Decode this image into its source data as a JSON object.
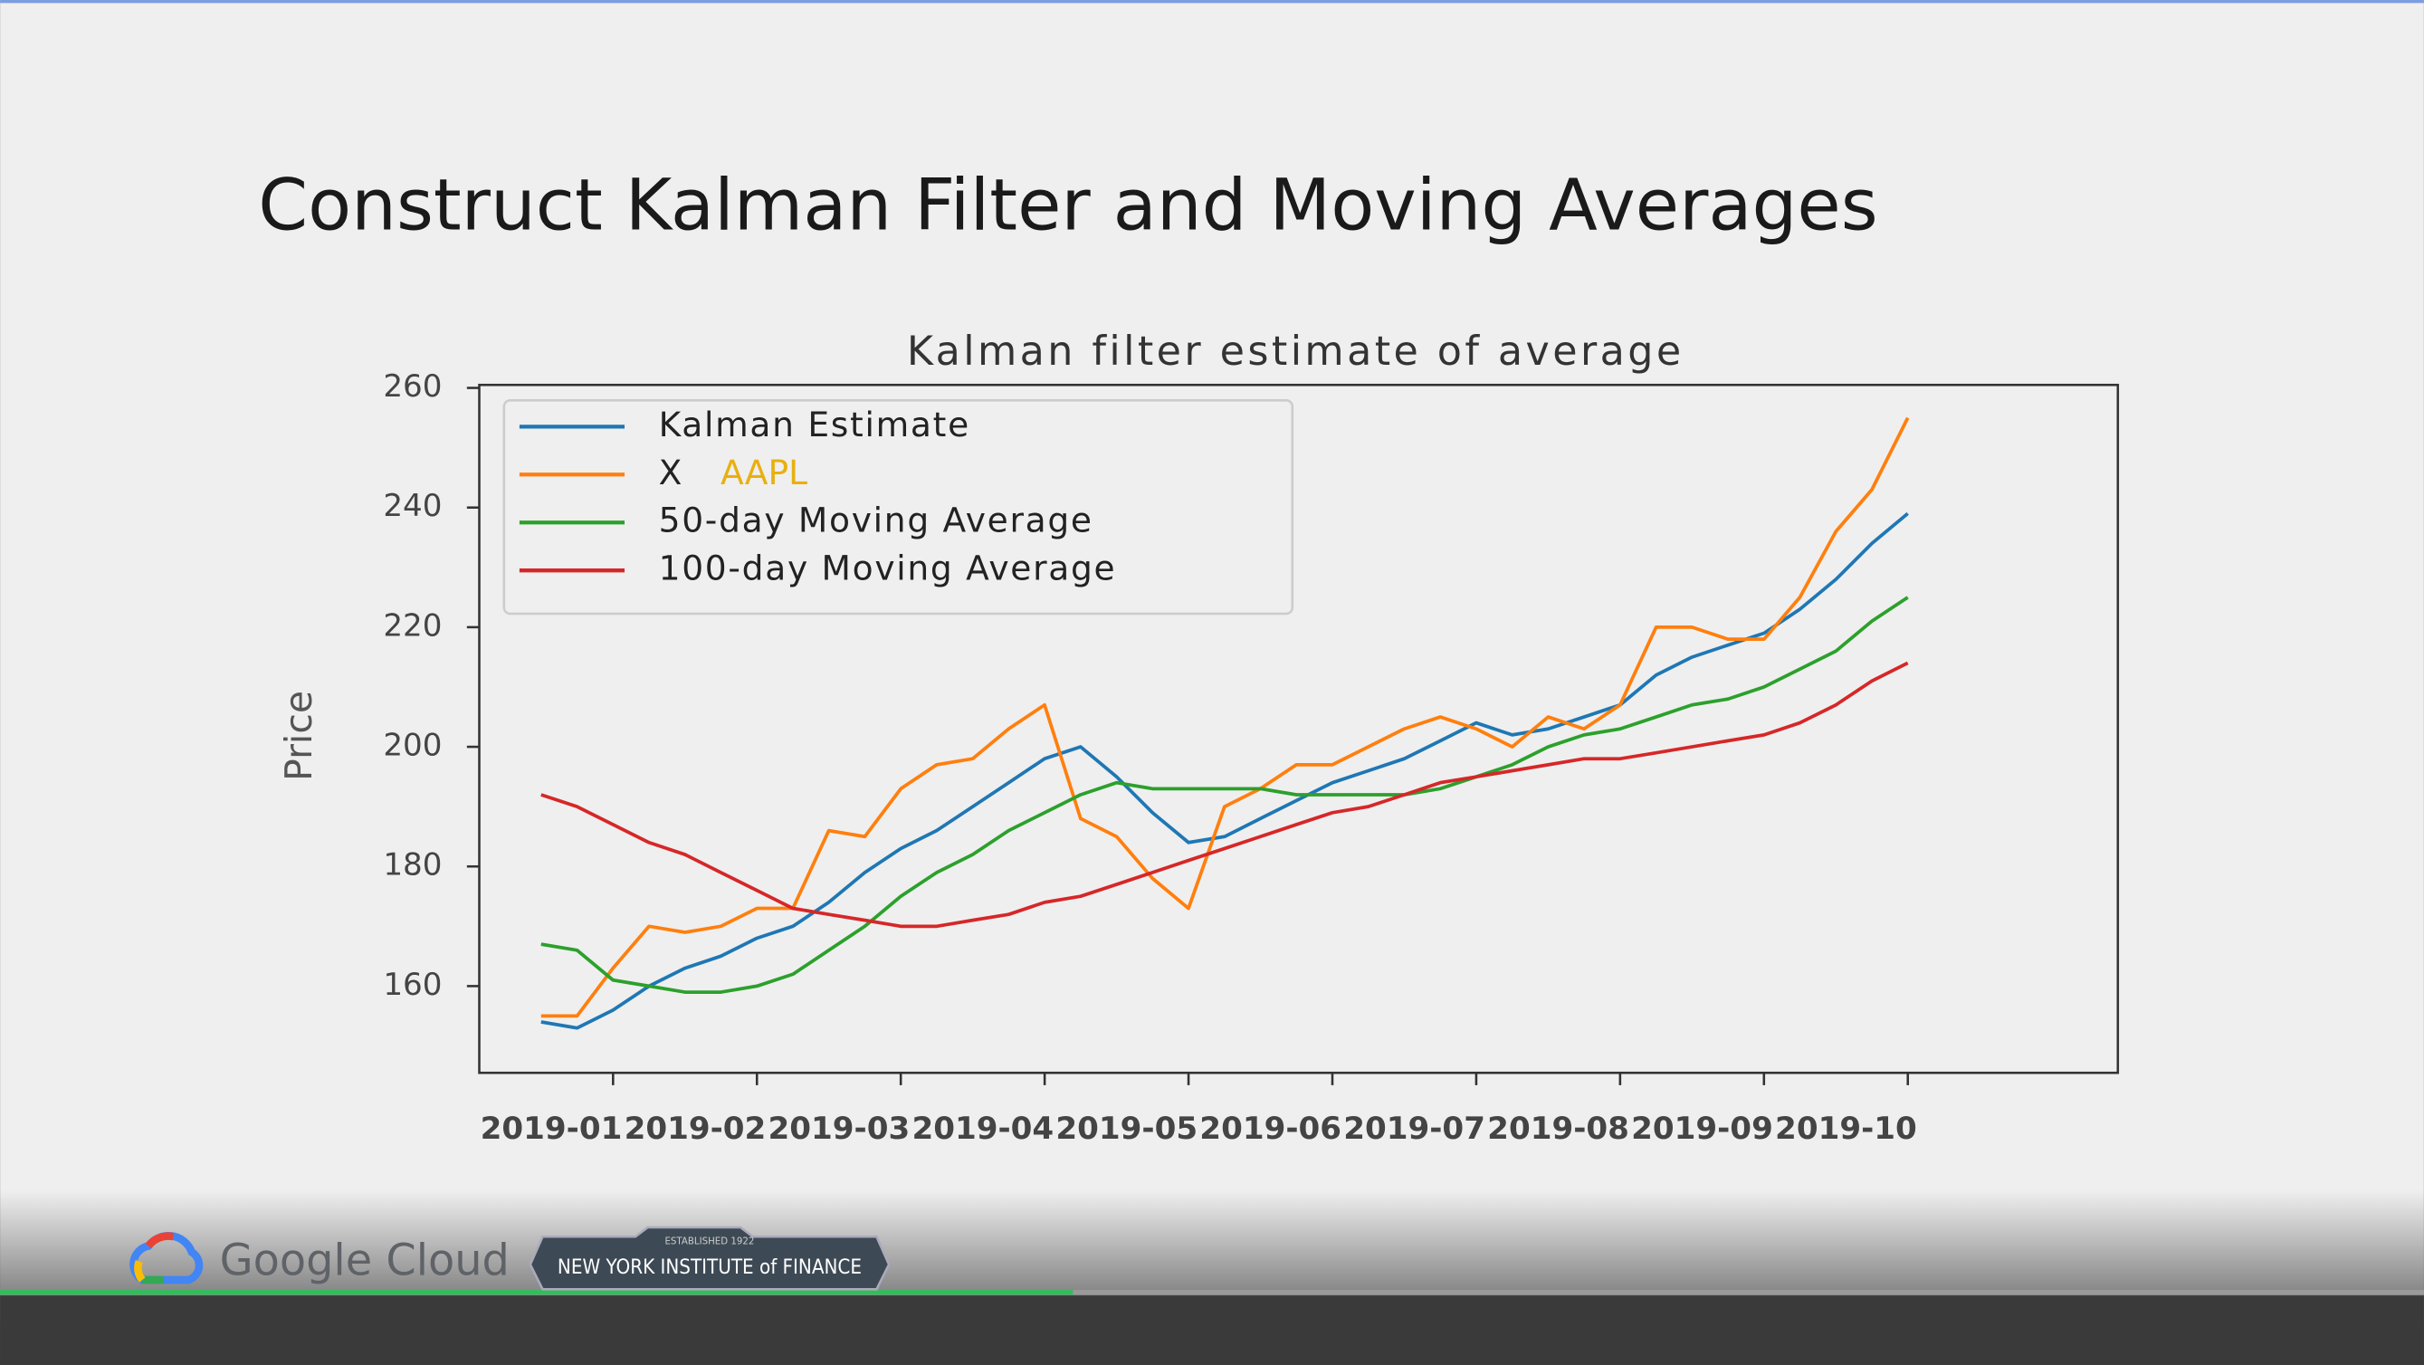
{
  "slide": {
    "title": "Construct Kalman Filter and Moving Averages"
  },
  "footer": {
    "brand": "Google Cloud",
    "badge": "NEW YORK INSTITUTE of FINANCE",
    "badge_top": "ESTABLISHED 1922"
  },
  "chart_data": {
    "type": "line",
    "title": "Kalman filter estimate of average",
    "y_label": "Price",
    "x": [
      -0.5,
      -0.25,
      0,
      0.25,
      0.5,
      0.75,
      1,
      1.25,
      1.5,
      1.75,
      2,
      2.25,
      2.5,
      2.75,
      3,
      3.25,
      3.5,
      3.75,
      4,
      4.25,
      4.5,
      4.75,
      5,
      5.25,
      5.5,
      5.75,
      6,
      6.25,
      6.5,
      6.75,
      7,
      7.25,
      7.5,
      7.75,
      8,
      8.25,
      8.5,
      8.75,
      9
    ],
    "xlim": [
      -0.93,
      10.46
    ],
    "xticks": [
      {
        "value": 0,
        "label": "2019-01"
      },
      {
        "value": 1,
        "label": "2019-02"
      },
      {
        "value": 2,
        "label": "2019-03"
      },
      {
        "value": 3,
        "label": "2019-04"
      },
      {
        "value": 4,
        "label": "2019-05"
      },
      {
        "value": 5,
        "label": "2019-06"
      },
      {
        "value": 6,
        "label": "2019-07"
      },
      {
        "value": 7,
        "label": "2019-08"
      },
      {
        "value": 8,
        "label": "2019-09"
      },
      {
        "value": 9,
        "label": "2019-10"
      }
    ],
    "ylim": [
      145.5,
      260.5
    ],
    "yticks": [
      160,
      180,
      200,
      220,
      240,
      260
    ],
    "grid": false,
    "legend_position": "upper-left",
    "legend_annotation": "AAPL",
    "series": [
      {
        "name": "Kalman Estimate",
        "color": "#1f77b4",
        "values": [
          154,
          153,
          156,
          160,
          163,
          165,
          168,
          170,
          174,
          179,
          183,
          186,
          190,
          194,
          198,
          200,
          195,
          189,
          184,
          185,
          188,
          191,
          194,
          196,
          198,
          201,
          204,
          202,
          203,
          205,
          207,
          212,
          215,
          217,
          219,
          223,
          228,
          234,
          239
        ]
      },
      {
        "name": "X",
        "color": "#ff7f0e",
        "values": [
          155,
          155,
          163,
          170,
          169,
          170,
          173,
          173,
          186,
          185,
          193,
          197,
          198,
          203,
          207,
          188,
          185,
          178,
          173,
          190,
          193,
          197,
          197,
          200,
          203,
          205,
          203,
          200,
          205,
          203,
          207,
          220,
          220,
          218,
          218,
          225,
          236,
          243,
          255
        ]
      },
      {
        "name": "50-day Moving Average",
        "color": "#2ca02c",
        "values": [
          167,
          166,
          161,
          160,
          159,
          159,
          160,
          162,
          166,
          170,
          175,
          179,
          182,
          186,
          189,
          192,
          194,
          193,
          193,
          193,
          193,
          192,
          192,
          192,
          192,
          193,
          195,
          197,
          200,
          202,
          203,
          205,
          207,
          208,
          210,
          213,
          216,
          221,
          225
        ]
      },
      {
        "name": "100-day Moving Average",
        "color": "#d62728",
        "values": [
          192,
          190,
          187,
          184,
          182,
          179,
          176,
          173,
          172,
          171,
          170,
          170,
          171,
          172,
          174,
          175,
          177,
          179,
          181,
          183,
          185,
          187,
          189,
          190,
          192,
          194,
          195,
          196,
          197,
          198,
          198,
          199,
          200,
          201,
          202,
          204,
          207,
          211,
          214
        ]
      }
    ]
  }
}
